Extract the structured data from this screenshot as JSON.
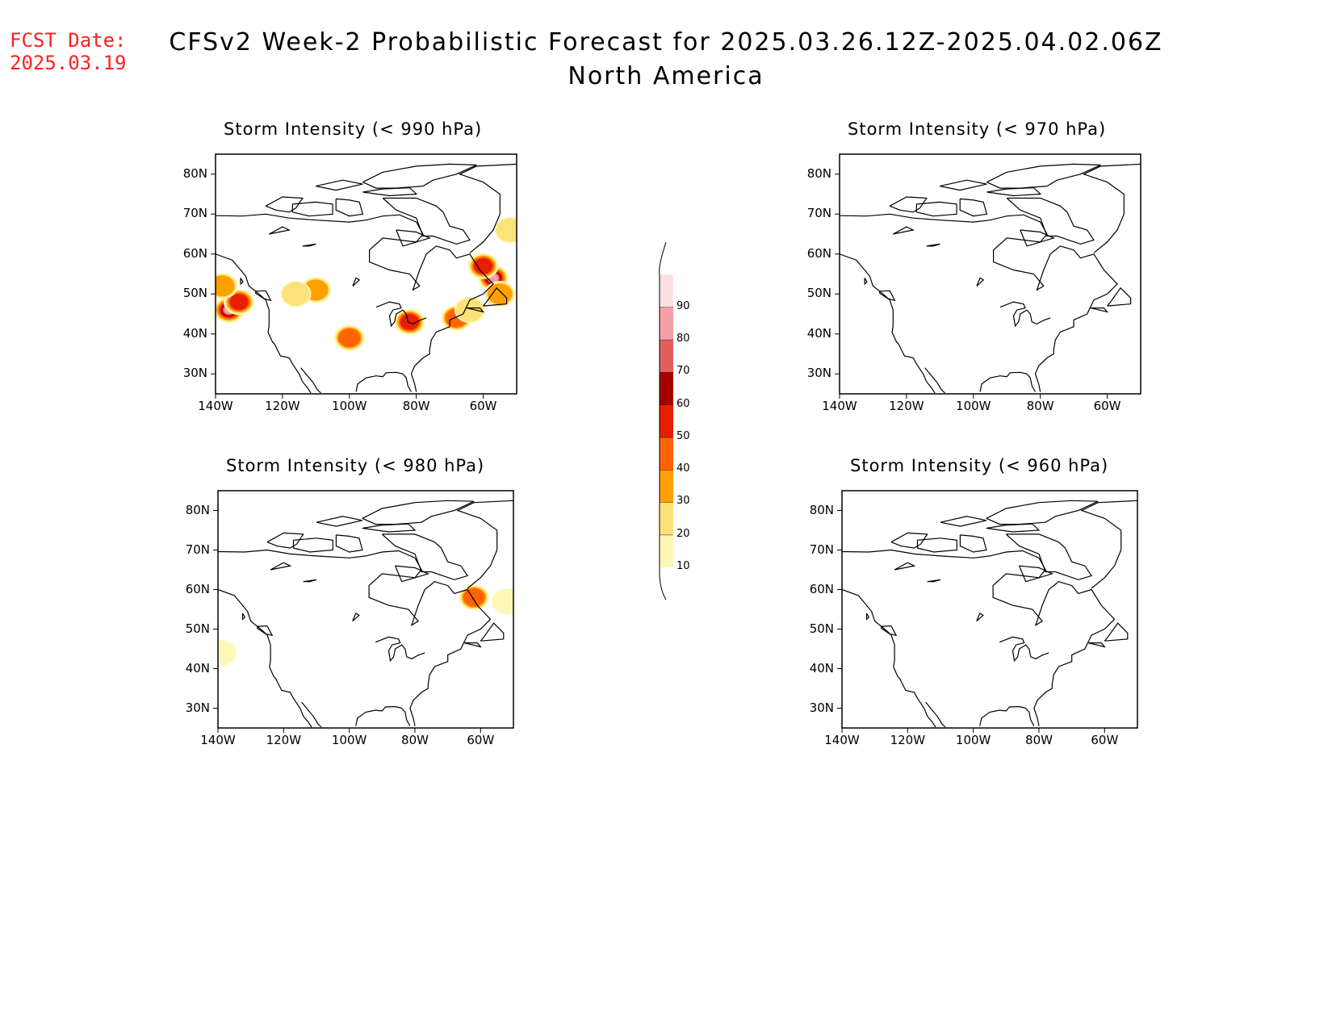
{
  "header": {
    "fcst_label": "FCST Date:",
    "fcst_date": "2025.03.19",
    "title_line1": "CFSv2 Week-2 Probabilistic Forecast for 2025.03.26.12Z-2025.04.02.06Z",
    "title_line2": "North America"
  },
  "axes": {
    "lat_labels": [
      "80N",
      "70N",
      "60N",
      "50N",
      "40N",
      "30N"
    ],
    "lon_labels": [
      "140W",
      "120W",
      "100W",
      "80W",
      "60W"
    ]
  },
  "panels": [
    {
      "title": "Storm Intensity (< 990 hPa)",
      "regions": [
        {
          "lon": -136,
          "lat": 46,
          "prob": 80
        },
        {
          "lon": -133,
          "lat": 48,
          "prob": 50
        },
        {
          "lon": -138,
          "lat": 52,
          "prob": 30
        },
        {
          "lon": -57,
          "lat": 54,
          "prob": 80
        },
        {
          "lon": -60,
          "lat": 57,
          "prob": 50
        },
        {
          "lon": -55,
          "lat": 50,
          "prob": 30
        },
        {
          "lon": -82,
          "lat": 43,
          "prob": 50
        },
        {
          "lon": -68,
          "lat": 44,
          "prob": 40
        },
        {
          "lon": -64,
          "lat": 46,
          "prob": 20
        },
        {
          "lon": -100,
          "lat": 39,
          "prob": 40
        },
        {
          "lon": -110,
          "lat": 51,
          "prob": 30
        },
        {
          "lon": -116,
          "lat": 50,
          "prob": 20
        },
        {
          "lon": -52,
          "lat": 66,
          "prob": 20
        }
      ]
    },
    {
      "title": "Storm Intensity (< 970 hPa)",
      "regions": []
    },
    {
      "title": "Storm Intensity (< 980 hPa)",
      "regions": [
        {
          "lon": -62,
          "lat": 58,
          "prob": 40
        },
        {
          "lon": -52,
          "lat": 57,
          "prob": 10
        },
        {
          "lon": -139,
          "lat": 44,
          "prob": 10
        }
      ]
    },
    {
      "title": "Storm Intensity (< 960 hPa)",
      "regions": []
    }
  ],
  "colorbar": {
    "levels": [
      "10",
      "20",
      "30",
      "40",
      "50",
      "60",
      "70",
      "80",
      "90"
    ],
    "colors": [
      "#fff7b8",
      "#fde27a",
      "#ffa000",
      "#ff6400",
      "#e81e00",
      "#a80000",
      "#e06060",
      "#f4a0a8",
      "#fde0e4"
    ]
  }
}
